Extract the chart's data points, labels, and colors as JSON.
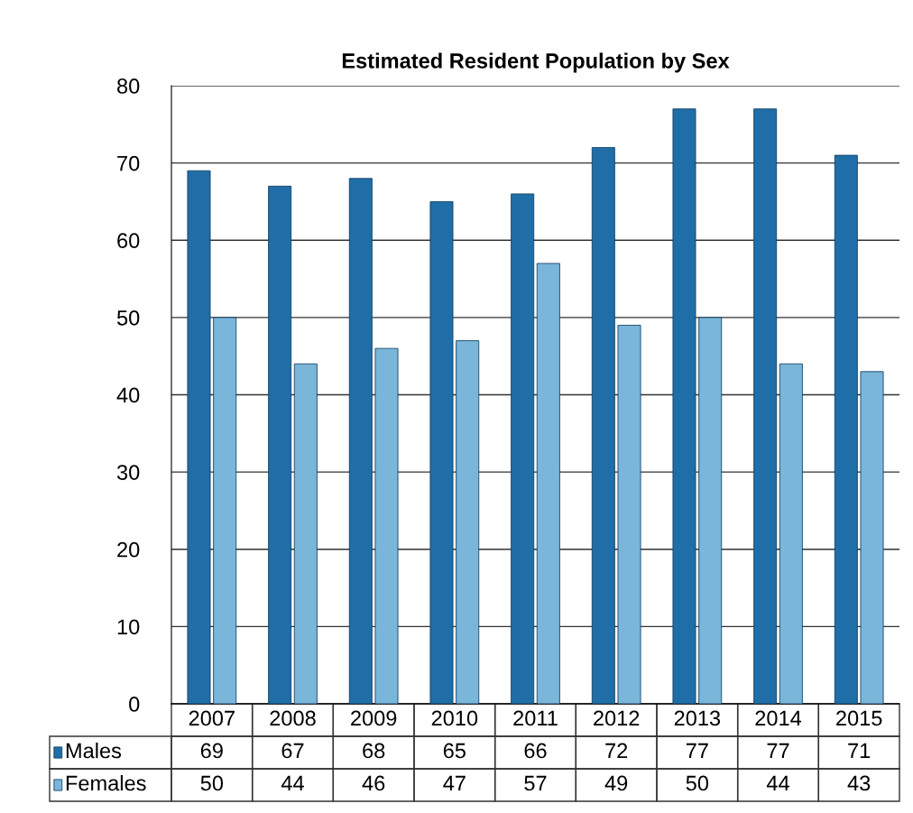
{
  "chart_data": {
    "type": "bar",
    "title": "Estimated Resident Population by Sex",
    "categories": [
      "2007",
      "2008",
      "2009",
      "2010",
      "2011",
      "2012",
      "2013",
      "2014",
      "2015"
    ],
    "series": [
      {
        "name": "Males",
        "color": "#1f6ea8",
        "values": [
          69,
          67,
          68,
          65,
          66,
          72,
          77,
          77,
          71
        ]
      },
      {
        "name": "Females",
        "color": "#7ab6da",
        "values": [
          50,
          44,
          46,
          47,
          57,
          49,
          50,
          44,
          43
        ]
      }
    ],
    "ylim": [
      0,
      80
    ],
    "yticks": [
      0,
      10,
      20,
      30,
      40,
      50,
      60,
      70,
      80
    ],
    "grid": "y",
    "legend": "bottom",
    "data_labels": true
  }
}
